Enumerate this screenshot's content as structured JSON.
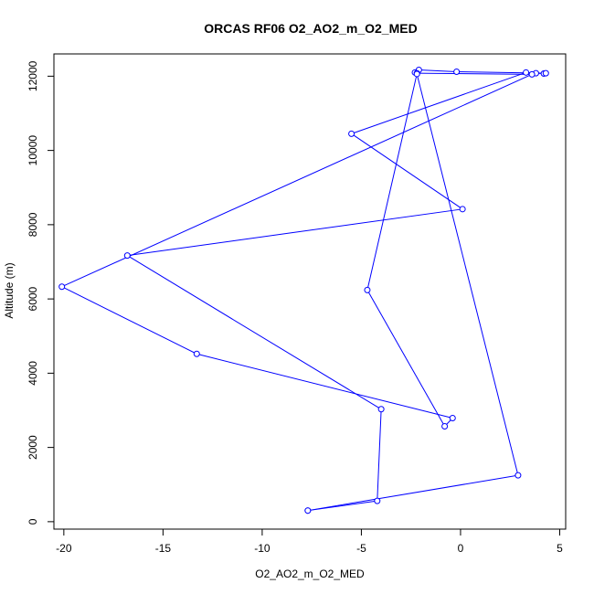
{
  "chart_data": {
    "type": "line",
    "title": "ORCAS RF06 O2_AO2_m_O2_MED",
    "xlabel": "O2_AO2_m_O2_MED",
    "ylabel": "Altitude (m)",
    "xlim": [
      -20.5,
      5.3
    ],
    "ylim": [
      -200,
      12600
    ],
    "xticks": [
      -20,
      -15,
      -10,
      -5,
      0,
      5
    ],
    "yticks": [
      0,
      2000,
      4000,
      6000,
      8000,
      10000,
      12000
    ],
    "grid": false,
    "markers": "open-circle",
    "color": "#0000ff",
    "series": [
      {
        "points": [
          {
            "x": -7.7,
            "y": 300
          },
          {
            "x": -4.2,
            "y": 560
          },
          {
            "x": -4.0,
            "y": 3030
          },
          {
            "x": -16.8,
            "y": 7170
          },
          {
            "x": 0.1,
            "y": 8420
          },
          {
            "x": -5.5,
            "y": 10450
          },
          {
            "x": 3.3,
            "y": 12100
          },
          {
            "x": 3.8,
            "y": 12080
          },
          {
            "x": 4.2,
            "y": 12070
          },
          {
            "x": 4.3,
            "y": 12080
          },
          {
            "x": -0.2,
            "y": 12120
          },
          {
            "x": -2.1,
            "y": 12170
          },
          {
            "x": -2.3,
            "y": 12100
          },
          {
            "x": -2.2,
            "y": 12080
          },
          {
            "x": 3.6,
            "y": 12050
          },
          {
            "x": -20.1,
            "y": 6330
          },
          {
            "x": -13.3,
            "y": 4520
          },
          {
            "x": -0.4,
            "y": 2790
          },
          {
            "x": -0.8,
            "y": 2570
          },
          {
            "x": -4.7,
            "y": 6240
          },
          {
            "x": -2.2,
            "y": 12060
          },
          {
            "x": 2.9,
            "y": 1250
          },
          {
            "x": -7.7,
            "y": 300
          }
        ]
      }
    ]
  }
}
